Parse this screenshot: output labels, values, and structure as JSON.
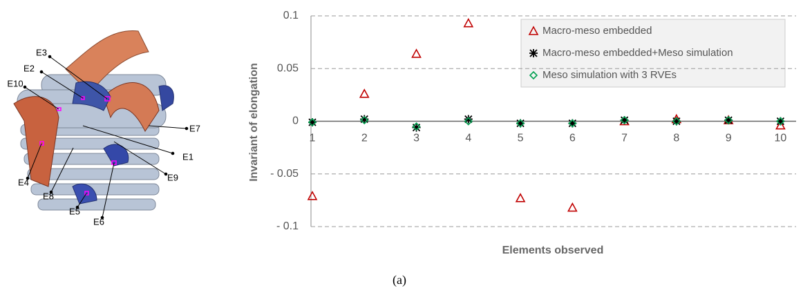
{
  "figure": {
    "labels": [
      "E1",
      "E2",
      "E3",
      "E4",
      "E5",
      "E6",
      "E7",
      "E8",
      "E9",
      "E10"
    ],
    "caption": "(a)"
  },
  "chart_data": {
    "type": "scatter",
    "x_label": "Elements observed",
    "y_label": "Invariant of elongation",
    "x": [
      1,
      2,
      3,
      4,
      5,
      6,
      7,
      8,
      9,
      10
    ],
    "xlim": [
      1,
      10.3
    ],
    "xticks": [
      1,
      2,
      3,
      4,
      5,
      6,
      7,
      8,
      9,
      10
    ],
    "ylim": [
      -0.1,
      0.1
    ],
    "yticks": [
      {
        "value": -0.1,
        "label": "- 0.1"
      },
      {
        "value": -0.05,
        "label": "- 0.05"
      },
      0,
      0.05,
      0.1
    ],
    "grid": true,
    "legend": "top-right",
    "series": [
      {
        "name": "Macro-meso embedded",
        "color": "#c00000",
        "marker": "triangle",
        "values": [
          -0.071,
          0.026,
          0.064,
          0.093,
          -0.073,
          -0.082,
          0,
          0.002,
          0.001,
          -0.004
        ]
      },
      {
        "name": "Macro-meso embedded+Meso simulation",
        "color": "#000000",
        "marker": "star",
        "values": [
          -0.001,
          0.002,
          -0.006,
          0.002,
          -0.002,
          -0.002,
          0.001,
          0,
          0.001,
          0
        ]
      },
      {
        "name": "Meso simulation with 3 RVEs",
        "color": "#00a050",
        "marker": "diamond",
        "values": [
          -0.001,
          0.001,
          -0.005,
          0,
          -0.002,
          -0.002,
          0.001,
          0,
          0.001,
          0
        ]
      }
    ]
  }
}
